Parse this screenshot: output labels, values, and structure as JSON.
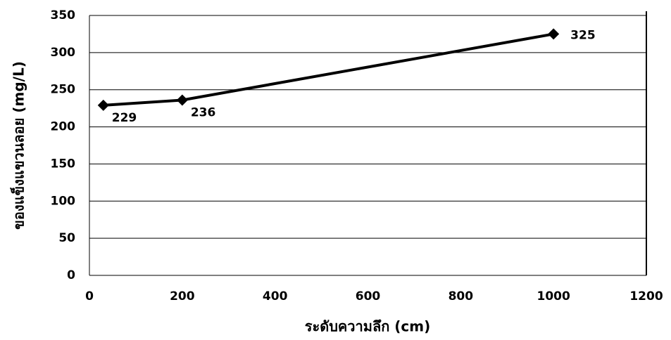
{
  "chart_data": {
    "type": "line",
    "x_label": "ระดับความลึก (cm)",
    "y_label": "ของแข็งแขวนลอย (mg/L)",
    "x": [
      30,
      200,
      1000
    ],
    "values": [
      229,
      236,
      325
    ],
    "color": "#000000",
    "xlim": [
      0,
      1200
    ],
    "xticks": [
      0,
      200,
      400,
      600,
      800,
      1000,
      1200
    ],
    "ylim": [
      0,
      350
    ],
    "yticks": [
      0,
      50,
      100,
      150,
      200,
      250,
      300,
      350
    ],
    "grid": true
  }
}
